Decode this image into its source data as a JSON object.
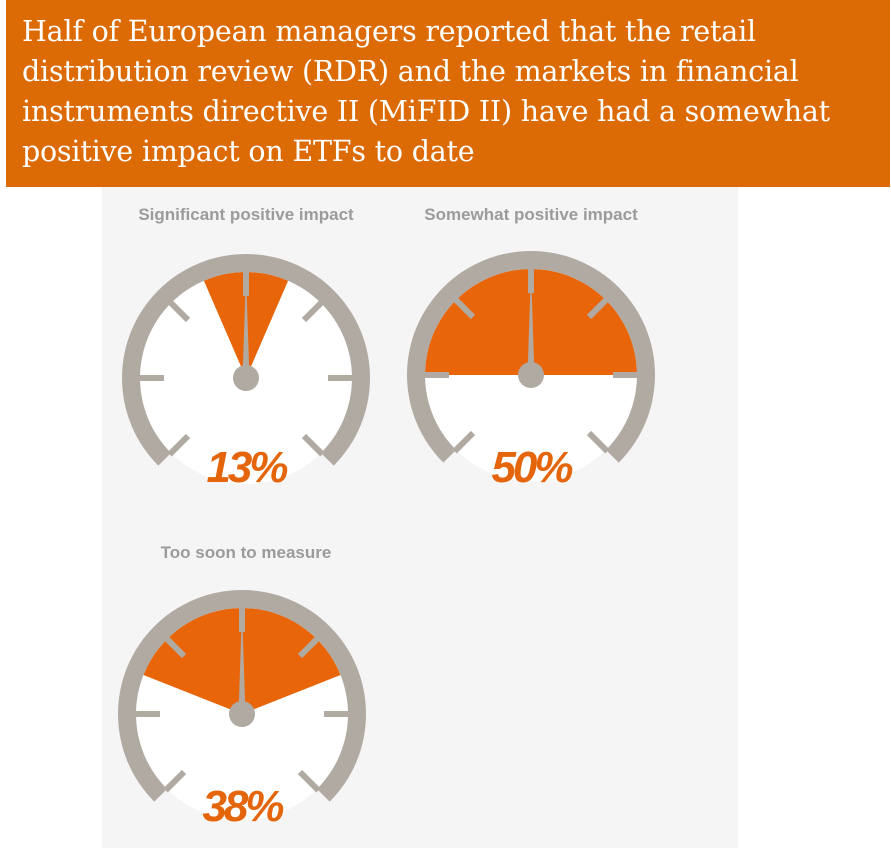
{
  "header": {
    "title": "Half of European managers reported that the retail distribution review (RDR) and the markets in financial instruments directive II (MiFID II) have had a somewhat positive impact on ETFs to date"
  },
  "colors": {
    "banner": "#dd6b05",
    "gauge_fill": "#e8650a",
    "gauge_rim": "#b1aaa3",
    "label_text": "#9b9b9b",
    "value_text": "#e4650a"
  },
  "chart_data": {
    "type": "gauge",
    "title": "",
    "categories": [
      "Significant positive impact",
      "Somewhat positive impact",
      "Too soon to measure"
    ],
    "values": [
      13,
      50,
      38
    ],
    "value_labels": [
      "13%",
      "50%",
      "38%"
    ],
    "unit": "%",
    "range": [
      0,
      100
    ],
    "gauges": [
      {
        "label": "Significant positive impact",
        "value": 13,
        "display": "13%"
      },
      {
        "label": "Somewhat positive impact",
        "value": 50,
        "display": "50%"
      },
      {
        "label": "Too soon to measure",
        "value": 38,
        "display": "38%"
      }
    ]
  }
}
